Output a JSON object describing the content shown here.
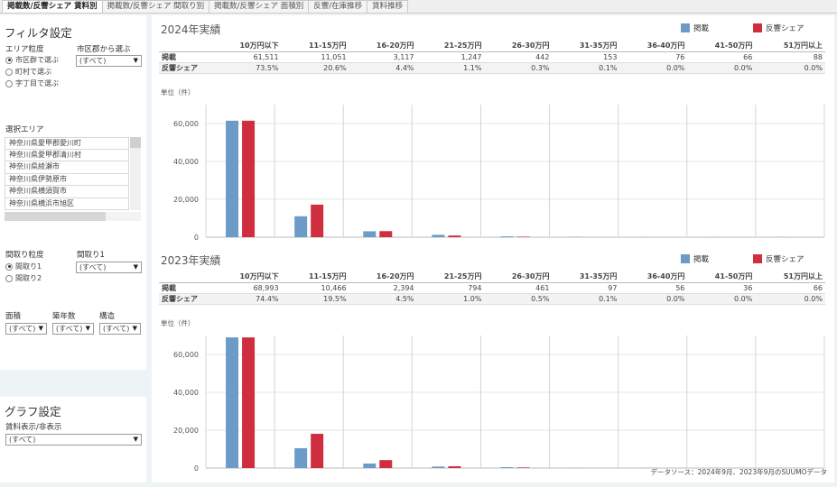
{
  "tabs": [
    "掲載数/反響シェア 賃料別",
    "掲載数/反響シェア 間取り別",
    "掲載数/反響シェア 面積別",
    "反響/在庫推移",
    "賃料推移"
  ],
  "filter": {
    "title": "フィルタ設定",
    "area_granularity_label": "エリア粒度",
    "area_options": [
      "市区群で選ぶ",
      "町村で選ぶ",
      "字丁目で選ぶ"
    ],
    "city_label": "市区郡から選ぶ",
    "city_value": "(すべて)",
    "selected_area_label": "選択エリア",
    "areas": [
      "神奈川県愛甲郡愛川町",
      "神奈川県愛甲郡清川村",
      "神奈川県綾瀬市",
      "神奈川県伊勢原市",
      "神奈川県横須賀市",
      "神奈川県横浜市旭区"
    ],
    "layout_granularity_label": "間取り粒度",
    "layout_options": [
      "間取り1",
      "間取り2"
    ],
    "layout1_label": "間取り1",
    "layout1_value": "(すべて)",
    "area_size_label": "面積",
    "area_size_value": "(すべて)",
    "age_label": "築年数",
    "age_value": "(すべて)",
    "structure_label": "構造",
    "structure_value": "(すべて)"
  },
  "graph_settings": {
    "title": "グラフ設定",
    "rent_display_label": "賃料表示/非表示",
    "rent_display_value": "(すべて)"
  },
  "legend": {
    "listing": "掲載",
    "share": "反響シェア"
  },
  "colors": {
    "listing": "#6c9bc7",
    "share": "#d02e3f"
  },
  "unit_label": "単位（件）",
  "row_labels": {
    "listing": "掲載",
    "share": "反響シェア"
  },
  "footer_note": "データソース：2024年9月、2023年9月のSUUMOデータ",
  "chart_data": [
    {
      "type": "bar",
      "title": "2024年実績",
      "categories": [
        "10万円以下",
        "11-15万円",
        "16-20万円",
        "21-25万円",
        "26-30万円",
        "31-35万円",
        "36-40万円",
        "41-50万円",
        "51万円以上"
      ],
      "series": [
        {
          "name": "掲載",
          "values": [
            61511,
            11051,
            3117,
            1247,
            442,
            153,
            76,
            66,
            88
          ]
        },
        {
          "name": "反響シェア",
          "values": [
            61511,
            17200,
            3200,
            880,
            280,
            0,
            0,
            0,
            0
          ]
        }
      ],
      "listing_text": [
        "61,511",
        "11,051",
        "3,117",
        "1,247",
        "442",
        "153",
        "76",
        "66",
        "88"
      ],
      "share_text": [
        "73.5%",
        "20.6%",
        "4.4%",
        "1.1%",
        "0.3%",
        "0.1%",
        "0.0%",
        "0.0%",
        "0.0%"
      ],
      "yticks": [
        "60,000",
        "40,000",
        "20,000",
        "0"
      ],
      "ytick_values": [
        60000,
        40000,
        20000,
        0
      ],
      "ylim": [
        0,
        70000
      ]
    },
    {
      "type": "bar",
      "title": "2023年実績",
      "categories": [
        "10万円以下",
        "11-15万円",
        "16-20万円",
        "21-25万円",
        "26-30万円",
        "31-35万円",
        "36-40万円",
        "41-50万円",
        "51万円以上"
      ],
      "series": [
        {
          "name": "掲載",
          "values": [
            68993,
            10466,
            2394,
            794,
            461,
            97,
            56,
            36,
            66
          ]
        },
        {
          "name": "反響シェア",
          "values": [
            68993,
            18100,
            4200,
            940,
            320,
            0,
            0,
            0,
            0
          ]
        }
      ],
      "listing_text": [
        "68,993",
        "10,466",
        "2,394",
        "794",
        "461",
        "97",
        "56",
        "36",
        "66"
      ],
      "share_text": [
        "74.4%",
        "19.5%",
        "4.5%",
        "1.0%",
        "0.5%",
        "0.1%",
        "0.0%",
        "0.0%",
        "0.0%"
      ],
      "yticks": [
        "60,000",
        "40,000",
        "20,000",
        "0"
      ],
      "ytick_values": [
        60000,
        40000,
        20000,
        0
      ],
      "ylim": [
        0,
        70000
      ]
    }
  ]
}
